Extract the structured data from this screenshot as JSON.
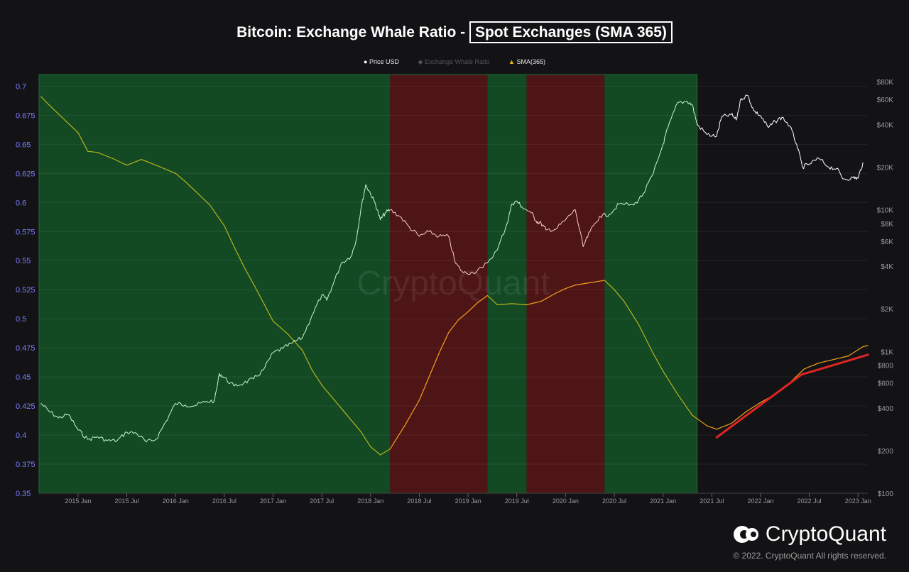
{
  "title": {
    "main": "Bitcoin: Exchange Whale Ratio - ",
    "boxed": "Spot Exchanges (SMA 365)"
  },
  "legend": [
    {
      "label": "Price USD",
      "marker": "●",
      "color": "#ffffff"
    },
    {
      "label": "Exchange Whale Ratio",
      "marker": "◆",
      "color": "#555555"
    },
    {
      "label": "SMA(365)",
      "marker": "▲",
      "color": "#f4b400"
    }
  ],
  "watermark": "CryptoQuant",
  "logo_text": "CryptoQuant",
  "copyright": "© 2022. CryptoQuant All rights reserved.",
  "colors": {
    "background": "#131316",
    "green_zone": "#134a24",
    "red_zone": "#4e1517",
    "left_axis_text": "#7b7bff",
    "right_axis_text": "#9a9a9a",
    "price_green": "#c8f3c8",
    "price_red": "#f3c8c8",
    "price_white": "#ffffff",
    "sma_yellow": "#b5b51a",
    "sma_orange": "#f4a21a",
    "trend_line": "#e02424"
  },
  "chart_data": {
    "type": "line",
    "x_ticks": [
      "2015 Jan",
      "2015 Jul",
      "2016 Jan",
      "2016 Jul",
      "2017 Jan",
      "2017 Jul",
      "2018 Jan",
      "2018 Jul",
      "2019 Jan",
      "2019 Jul",
      "2020 Jan",
      "2020 Jul",
      "2021 Jan",
      "2021 Jul",
      "2022 Jan",
      "2022 Jul",
      "2023 Jan"
    ],
    "x_range": [
      2014.6,
      2023.1
    ],
    "left_axis": {
      "ticks": [
        "0.35",
        "0.375",
        "0.4",
        "0.425",
        "0.45",
        "0.475",
        "0.5",
        "0.525",
        "0.55",
        "0.575",
        "0.6",
        "0.625",
        "0.65",
        "0.675",
        "0.7"
      ],
      "ylim": [
        0.35,
        0.71
      ]
    },
    "right_axis": {
      "scale": "log",
      "ticks": [
        "$100",
        "$200",
        "$400",
        "$600",
        "$800",
        "$1K",
        "$2K",
        "$4K",
        "$6K",
        "$8K",
        "$10K",
        "$20K",
        "$40K",
        "$60K",
        "$80K"
      ],
      "tick_values": [
        100,
        200,
        400,
        600,
        800,
        1000,
        2000,
        4000,
        6000,
        8000,
        10000,
        20000,
        40000,
        60000,
        80000
      ]
    },
    "zones": [
      {
        "type": "green",
        "from": 2014.6,
        "to": 2018.2
      },
      {
        "type": "red",
        "from": 2018.2,
        "to": 2019.2
      },
      {
        "type": "green",
        "from": 2019.2,
        "to": 2019.6
      },
      {
        "type": "red",
        "from": 2019.6,
        "to": 2020.4
      },
      {
        "type": "green",
        "from": 2020.4,
        "to": 2021.35
      }
    ],
    "series": [
      {
        "name": "Price USD",
        "axis": "right",
        "points": [
          [
            2014.62,
            430
          ],
          [
            2014.7,
            380
          ],
          [
            2014.8,
            340
          ],
          [
            2014.9,
            360
          ],
          [
            2015.0,
            280
          ],
          [
            2015.1,
            240
          ],
          [
            2015.2,
            250
          ],
          [
            2015.3,
            235
          ],
          [
            2015.4,
            235
          ],
          [
            2015.5,
            270
          ],
          [
            2015.6,
            265
          ],
          [
            2015.7,
            230
          ],
          [
            2015.8,
            240
          ],
          [
            2015.9,
            320
          ],
          [
            2016.0,
            430
          ],
          [
            2016.1,
            420
          ],
          [
            2016.2,
            415
          ],
          [
            2016.3,
            440
          ],
          [
            2016.4,
            450
          ],
          [
            2016.45,
            700
          ],
          [
            2016.5,
            650
          ],
          [
            2016.6,
            570
          ],
          [
            2016.7,
            600
          ],
          [
            2016.8,
            640
          ],
          [
            2016.9,
            740
          ],
          [
            2017.0,
            980
          ],
          [
            2017.1,
            1050
          ],
          [
            2017.2,
            1150
          ],
          [
            2017.3,
            1250
          ],
          [
            2017.4,
            1800
          ],
          [
            2017.5,
            2500
          ],
          [
            2017.55,
            2300
          ],
          [
            2017.6,
            2800
          ],
          [
            2017.7,
            4200
          ],
          [
            2017.8,
            4700
          ],
          [
            2017.85,
            6000
          ],
          [
            2017.9,
            10000
          ],
          [
            2017.95,
            15000
          ],
          [
            2018.0,
            13000
          ],
          [
            2018.05,
            11000
          ],
          [
            2018.1,
            8500
          ],
          [
            2018.15,
            9500
          ],
          [
            2018.2,
            10000
          ],
          [
            2018.3,
            9000
          ],
          [
            2018.4,
            7500
          ],
          [
            2018.5,
            6500
          ],
          [
            2018.6,
            7000
          ],
          [
            2018.7,
            6500
          ],
          [
            2018.8,
            6500
          ],
          [
            2018.87,
            4200
          ],
          [
            2018.95,
            3600
          ],
          [
            2019.05,
            3600
          ],
          [
            2019.15,
            3900
          ],
          [
            2019.3,
            5200
          ],
          [
            2019.4,
            8000
          ],
          [
            2019.45,
            11000
          ],
          [
            2019.5,
            11500
          ],
          [
            2019.55,
            10500
          ],
          [
            2019.65,
            9500
          ],
          [
            2019.7,
            8300
          ],
          [
            2019.75,
            8000
          ],
          [
            2019.8,
            7200
          ],
          [
            2019.9,
            7300
          ],
          [
            2020.0,
            8500
          ],
          [
            2020.1,
            10000
          ],
          [
            2020.18,
            5500
          ],
          [
            2020.25,
            7000
          ],
          [
            2020.35,
            9000
          ],
          [
            2020.45,
            9300
          ],
          [
            2020.55,
            11000
          ],
          [
            2020.7,
            10800
          ],
          [
            2020.8,
            13000
          ],
          [
            2020.9,
            18000
          ],
          [
            2021.0,
            29000
          ],
          [
            2021.05,
            38000
          ],
          [
            2021.15,
            57000
          ],
          [
            2021.25,
            58000
          ],
          [
            2021.3,
            55000
          ],
          [
            2021.35,
            40000
          ],
          [
            2021.45,
            34000
          ],
          [
            2021.55,
            33000
          ],
          [
            2021.6,
            45000
          ],
          [
            2021.7,
            47000
          ],
          [
            2021.75,
            43000
          ],
          [
            2021.8,
            61000
          ],
          [
            2021.87,
            64000
          ],
          [
            2021.93,
            50000
          ],
          [
            2022.0,
            46000
          ],
          [
            2022.08,
            38000
          ],
          [
            2022.15,
            42000
          ],
          [
            2022.22,
            45000
          ],
          [
            2022.3,
            39000
          ],
          [
            2022.37,
            29000
          ],
          [
            2022.43,
            20000
          ],
          [
            2022.5,
            21000
          ],
          [
            2022.6,
            23000
          ],
          [
            2022.7,
            20000
          ],
          [
            2022.78,
            19500
          ],
          [
            2022.85,
            16500
          ],
          [
            2022.95,
            16800
          ],
          [
            2023.0,
            16700
          ],
          [
            2023.05,
            21500
          ]
        ]
      },
      {
        "name": "SMA(365)",
        "axis": "left",
        "points": [
          [
            2014.62,
            0.691
          ],
          [
            2014.7,
            0.684
          ],
          [
            2014.85,
            0.672
          ],
          [
            2015.0,
            0.66
          ],
          [
            2015.1,
            0.644
          ],
          [
            2015.2,
            0.643
          ],
          [
            2015.35,
            0.638
          ],
          [
            2015.5,
            0.632
          ],
          [
            2015.65,
            0.637
          ],
          [
            2015.8,
            0.632
          ],
          [
            2016.0,
            0.625
          ],
          [
            2016.1,
            0.618
          ],
          [
            2016.2,
            0.61
          ],
          [
            2016.35,
            0.598
          ],
          [
            2016.5,
            0.58
          ],
          [
            2016.6,
            0.562
          ],
          [
            2016.7,
            0.545
          ],
          [
            2016.85,
            0.522
          ],
          [
            2017.0,
            0.498
          ],
          [
            2017.15,
            0.487
          ],
          [
            2017.3,
            0.473
          ],
          [
            2017.4,
            0.456
          ],
          [
            2017.5,
            0.443
          ],
          [
            2017.6,
            0.433
          ],
          [
            2017.75,
            0.418
          ],
          [
            2017.9,
            0.403
          ],
          [
            2018.0,
            0.39
          ],
          [
            2018.1,
            0.383
          ],
          [
            2018.2,
            0.388
          ],
          [
            2018.35,
            0.408
          ],
          [
            2018.5,
            0.43
          ],
          [
            2018.6,
            0.45
          ],
          [
            2018.7,
            0.47
          ],
          [
            2018.8,
            0.488
          ],
          [
            2018.9,
            0.499
          ],
          [
            2019.0,
            0.506
          ],
          [
            2019.1,
            0.514
          ],
          [
            2019.2,
            0.52
          ],
          [
            2019.3,
            0.512
          ],
          [
            2019.45,
            0.513
          ],
          [
            2019.6,
            0.512
          ],
          [
            2019.75,
            0.515
          ],
          [
            2019.9,
            0.522
          ],
          [
            2020.0,
            0.526
          ],
          [
            2020.1,
            0.529
          ],
          [
            2020.25,
            0.531
          ],
          [
            2020.4,
            0.533
          ],
          [
            2020.5,
            0.525
          ],
          [
            2020.6,
            0.515
          ],
          [
            2020.75,
            0.495
          ],
          [
            2020.9,
            0.47
          ],
          [
            2021.0,
            0.455
          ],
          [
            2021.15,
            0.435
          ],
          [
            2021.3,
            0.417
          ],
          [
            2021.45,
            0.408
          ],
          [
            2021.55,
            0.405
          ],
          [
            2021.7,
            0.41
          ],
          [
            2021.85,
            0.42
          ],
          [
            2022.0,
            0.428
          ],
          [
            2022.15,
            0.435
          ],
          [
            2022.3,
            0.445
          ],
          [
            2022.45,
            0.457
          ],
          [
            2022.6,
            0.462
          ],
          [
            2022.75,
            0.465
          ],
          [
            2022.9,
            0.468
          ],
          [
            2023.05,
            0.476
          ],
          [
            2023.1,
            0.477
          ]
        ]
      }
    ],
    "trend_line": {
      "from": [
        2021.55,
        0.398
      ],
      "to": [
        2023.1,
        0.469
      ]
    }
  }
}
